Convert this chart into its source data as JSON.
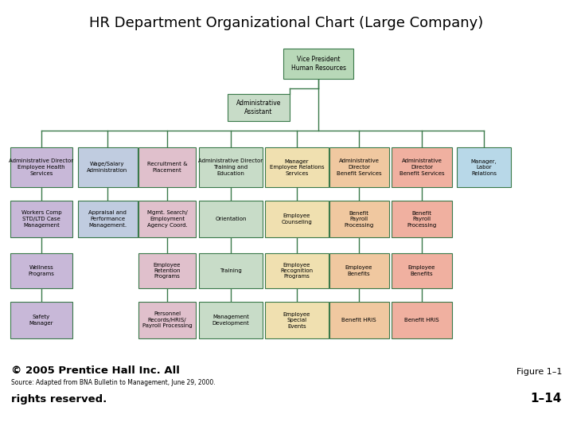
{
  "title": "HR Department Organizational Chart (Large Company)",
  "footer_left_line1": "© 2005 Prentice Hall Inc. All",
  "footer_left_line2": "Source: Adapted from BNA Bulletin to Management, June 29, 2000.",
  "footer_left_line3": "rights reserved.",
  "footer_right_line1": "Figure 1–1",
  "footer_right_line2": "1–14",
  "col_colors": [
    "#c8b8d8",
    "#c0cce0",
    "#e0c0cc",
    "#c8dcc8",
    "#f0e0b0",
    "#f0c8a0",
    "#f0b0a0",
    "#b8d8e8"
  ],
  "vp_color": "#b8d8b8",
  "aa_color": "#c8dcc8",
  "line_color": "#3a7a4a"
}
